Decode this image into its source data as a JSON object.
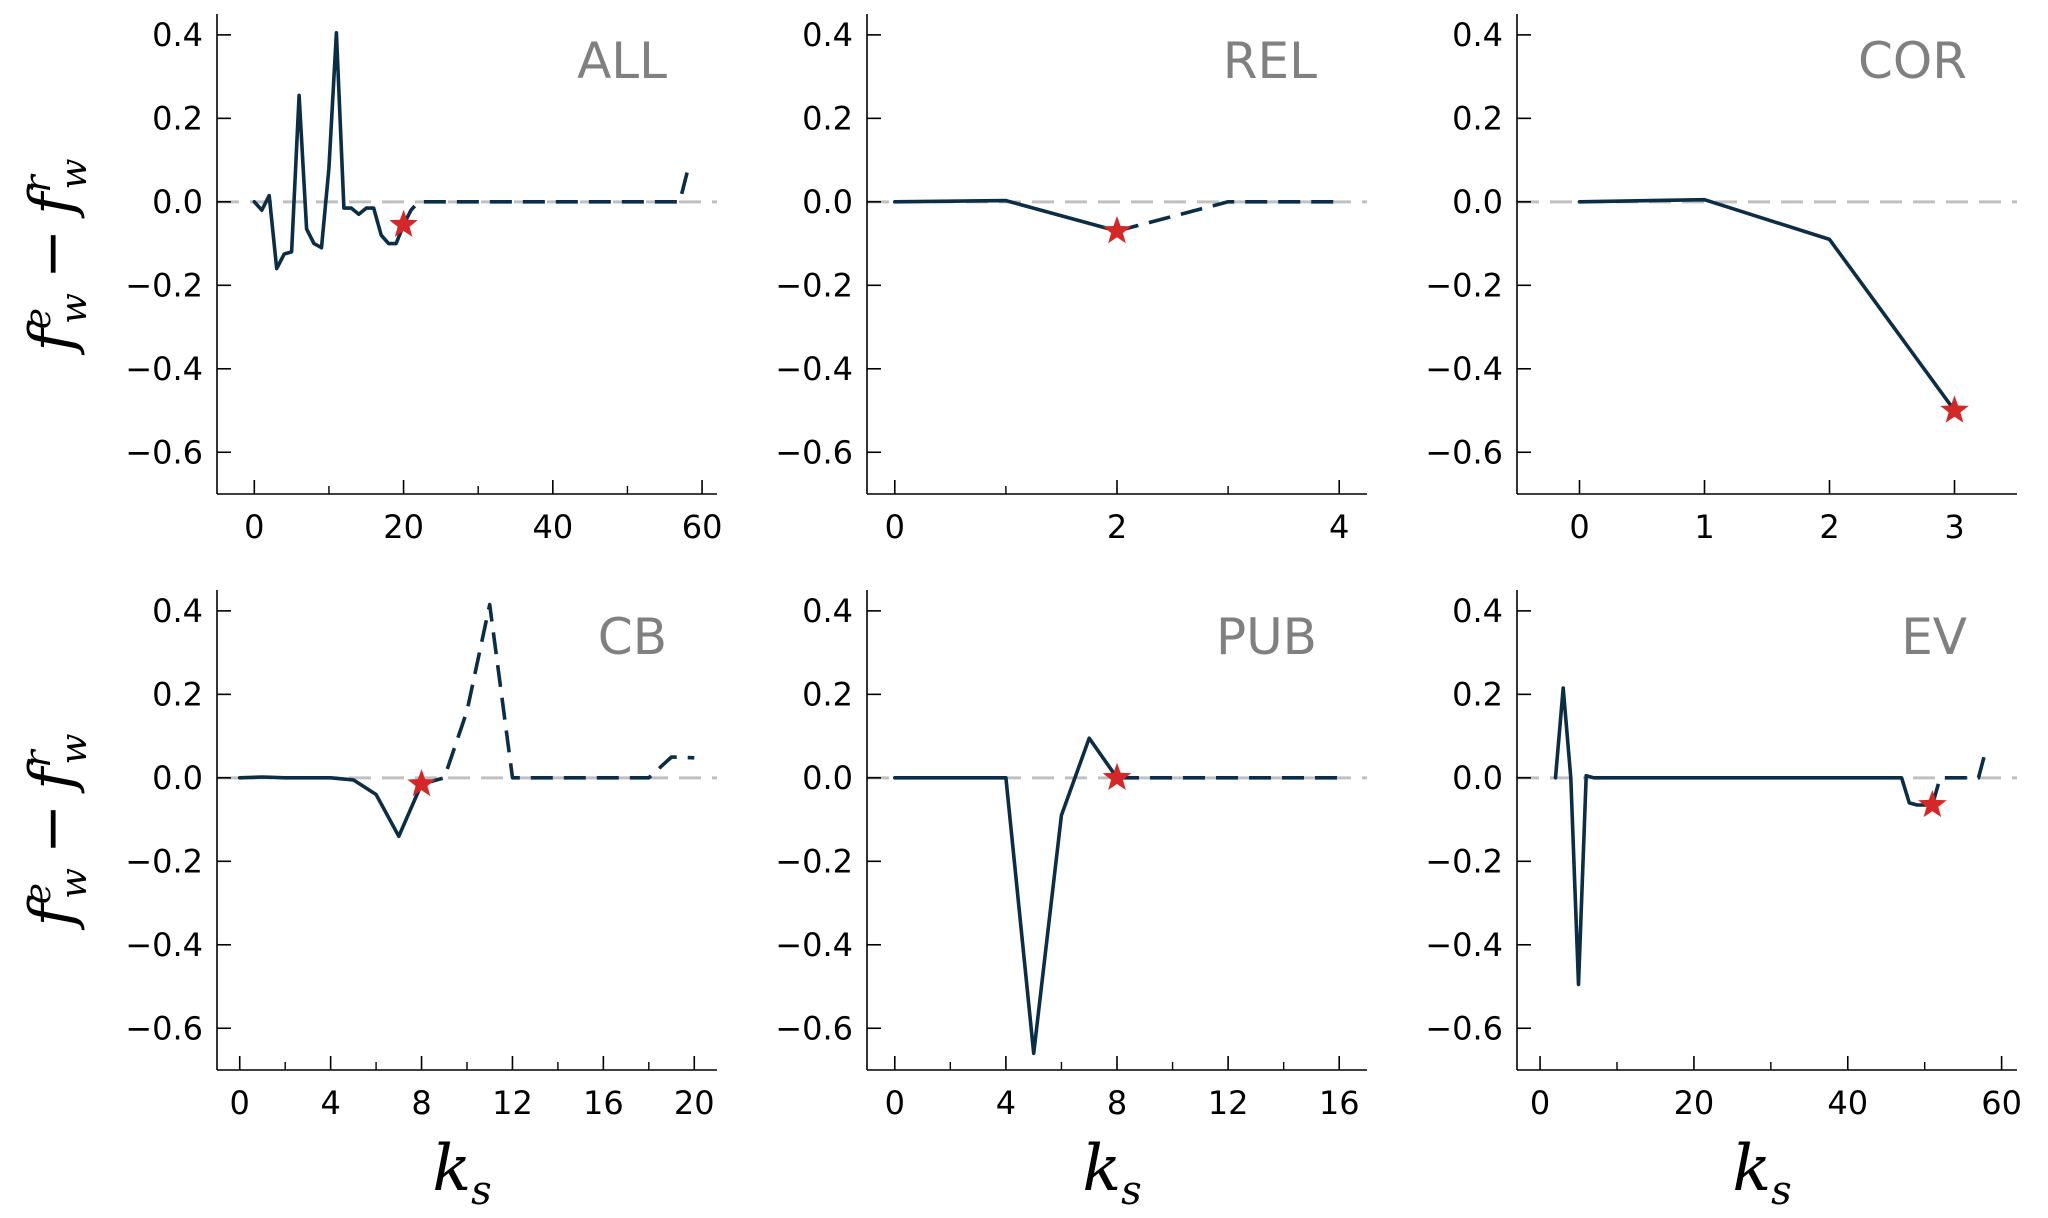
{
  "figure": {
    "ylabel_main": "f",
    "ylabel_sub": "w",
    "ylabel_sup_e": "e",
    "ylabel_sup_r": "r",
    "ylabel_minus": "−",
    "xlabel_main": "k",
    "xlabel_sub": "s"
  },
  "colors": {
    "line": "#0b2d45",
    "zero_line": "#c0c0c0",
    "star": "#d62728",
    "panel_label": "#808080"
  },
  "chart_data": [
    {
      "type": "line",
      "label": "ALL",
      "xlim": [
        -5,
        62
      ],
      "ylim": [
        -0.7,
        0.45
      ],
      "xticks": [
        0,
        20,
        40,
        60
      ],
      "xtick_labels": [
        "0",
        "20",
        "40",
        "60"
      ],
      "xminor": [
        10,
        30,
        50
      ],
      "yticks": [
        0.4,
        0.2,
        0.0,
        -0.2,
        -0.4,
        -0.6
      ],
      "ytick_labels": [
        "0.4",
        "0.2",
        "0.0",
        "−0.2",
        "−0.4",
        "−0.6"
      ],
      "solid": {
        "x": [
          0,
          1,
          2,
          3,
          4,
          5,
          6,
          7,
          8,
          9,
          10,
          11,
          12,
          13,
          14,
          15,
          16,
          17,
          18,
          19,
          20
        ],
        "y": [
          0.0,
          -0.02,
          0.015,
          -0.16,
          -0.125,
          -0.12,
          0.255,
          -0.065,
          -0.1,
          -0.11,
          0.08,
          0.405,
          -0.015,
          -0.015,
          -0.03,
          -0.015,
          -0.015,
          -0.08,
          -0.1,
          -0.1,
          -0.055
        ]
      },
      "dashed": {
        "x": [
          20,
          21,
          22,
          24,
          30,
          40,
          50,
          57,
          58
        ],
        "y": [
          -0.055,
          -0.02,
          0.0,
          0.0,
          0.0,
          0.0,
          0.0,
          0.0,
          0.07
        ]
      },
      "star": {
        "x": 20,
        "y": -0.055
      }
    },
    {
      "type": "line",
      "label": "REL",
      "xlim": [
        -0.25,
        4.25
      ],
      "ylim": [
        -0.7,
        0.45
      ],
      "xticks": [
        0,
        2,
        4
      ],
      "xtick_labels": [
        "0",
        "2",
        "4"
      ],
      "xminor": [
        1,
        3
      ],
      "yticks": [
        0.4,
        0.2,
        0.0,
        -0.2,
        -0.4,
        -0.6
      ],
      "ytick_labels": [
        "0.4",
        "0.2",
        "0.0",
        "−0.2",
        "−0.4",
        "−0.6"
      ],
      "solid": {
        "x": [
          0,
          1,
          2
        ],
        "y": [
          0.0,
          0.003,
          -0.07
        ]
      },
      "dashed": {
        "x": [
          2,
          3,
          4
        ],
        "y": [
          -0.07,
          0.0,
          0.0
        ]
      },
      "star": {
        "x": 2,
        "y": -0.07
      }
    },
    {
      "type": "line",
      "label": "COR",
      "xlim": [
        -0.5,
        3.5
      ],
      "ylim": [
        -0.7,
        0.45
      ],
      "xticks": [
        0,
        1,
        2,
        3
      ],
      "xtick_labels": [
        "0",
        "1",
        "2",
        "3"
      ],
      "xminor": [],
      "yticks": [
        0.4,
        0.2,
        0.0,
        -0.2,
        -0.4,
        -0.6
      ],
      "ytick_labels": [
        "0.4",
        "0.2",
        "0.0",
        "−0.2",
        "−0.4",
        "−0.6"
      ],
      "solid": {
        "x": [
          0,
          1,
          2,
          3
        ],
        "y": [
          0.0,
          0.005,
          -0.09,
          -0.5
        ]
      },
      "dashed": {
        "x": [],
        "y": []
      },
      "star": {
        "x": 3,
        "y": -0.5
      }
    },
    {
      "type": "line",
      "label": "CB",
      "xlim": [
        -1,
        21
      ],
      "ylim": [
        -0.7,
        0.45
      ],
      "xticks": [
        0,
        4,
        8,
        12,
        16,
        20
      ],
      "xtick_labels": [
        "0",
        "4",
        "8",
        "12",
        "16",
        "20"
      ],
      "xminor": [
        2,
        6,
        10,
        14,
        18
      ],
      "yticks": [
        0.4,
        0.2,
        0.0,
        -0.2,
        -0.4,
        -0.6
      ],
      "ytick_labels": [
        "0.4",
        "0.2",
        "0.0",
        "−0.2",
        "−0.4",
        "−0.6"
      ],
      "solid": {
        "x": [
          0,
          1,
          2,
          3,
          4,
          5,
          6,
          7,
          8
        ],
        "y": [
          0.0,
          0.002,
          0.0,
          0.0,
          0.0,
          -0.005,
          -0.04,
          -0.14,
          -0.015
        ]
      },
      "dashed": {
        "x": [
          8,
          9,
          10,
          11,
          12,
          13,
          14,
          15,
          16,
          17,
          18,
          19,
          20
        ],
        "y": [
          -0.015,
          0.0,
          0.16,
          0.415,
          0.0,
          0.0,
          0.0,
          0.0,
          0.0,
          0.0,
          0.0,
          0.05,
          0.048
        ]
      },
      "star": {
        "x": 8,
        "y": -0.015
      }
    },
    {
      "type": "line",
      "label": "PUB",
      "xlim": [
        -1,
        17
      ],
      "ylim": [
        -0.7,
        0.45
      ],
      "xticks": [
        0,
        4,
        8,
        12,
        16
      ],
      "xtick_labels": [
        "0",
        "4",
        "8",
        "12",
        "16"
      ],
      "xminor": [
        2,
        6,
        10,
        14
      ],
      "yticks": [
        0.4,
        0.2,
        0.0,
        -0.2,
        -0.4,
        -0.6
      ],
      "ytick_labels": [
        "0.4",
        "0.2",
        "0.0",
        "−0.2",
        "−0.4",
        "−0.6"
      ],
      "solid": {
        "x": [
          0,
          1,
          2,
          3,
          4,
          5,
          6,
          7,
          8
        ],
        "y": [
          0.0,
          0.0,
          0.0,
          0.0,
          0.0,
          -0.66,
          -0.09,
          0.095,
          0.0
        ]
      },
      "dashed": {
        "x": [
          8,
          9,
          10,
          11,
          12,
          13,
          14,
          15,
          16
        ],
        "y": [
          0.0,
          0.0,
          0.0,
          0.0,
          0.0,
          0.0,
          0.0,
          0.0,
          0.0
        ]
      },
      "star": {
        "x": 8,
        "y": 0.0
      }
    },
    {
      "type": "line",
      "label": "EV",
      "xlim": [
        -3,
        62
      ],
      "ylim": [
        -0.7,
        0.45
      ],
      "xticks": [
        0,
        20,
        40,
        60
      ],
      "xtick_labels": [
        "0",
        "20",
        "40",
        "60"
      ],
      "xminor": [
        10,
        30,
        50
      ],
      "yticks": [
        0.4,
        0.2,
        0.0,
        -0.2,
        -0.4,
        -0.6
      ],
      "ytick_labels": [
        "0.4",
        "0.2",
        "0.0",
        "−0.2",
        "−0.4",
        "−0.6"
      ],
      "solid": {
        "x": [
          2,
          3,
          4,
          5,
          6,
          7,
          10,
          20,
          30,
          40,
          46,
          47,
          48,
          49,
          50,
          51
        ],
        "y": [
          0.0,
          0.215,
          0.0,
          -0.495,
          0.005,
          0.0,
          0.0,
          0.0,
          0.0,
          0.0,
          0.0,
          0.0,
          -0.06,
          -0.065,
          -0.065,
          -0.065
        ]
      },
      "dashed": {
        "x": [
          51,
          52,
          53,
          55,
          57,
          58
        ],
        "y": [
          -0.065,
          0.0,
          0.0,
          0.0,
          0.0,
          0.07
        ]
      },
      "star": {
        "x": 51,
        "y": -0.065
      }
    }
  ]
}
